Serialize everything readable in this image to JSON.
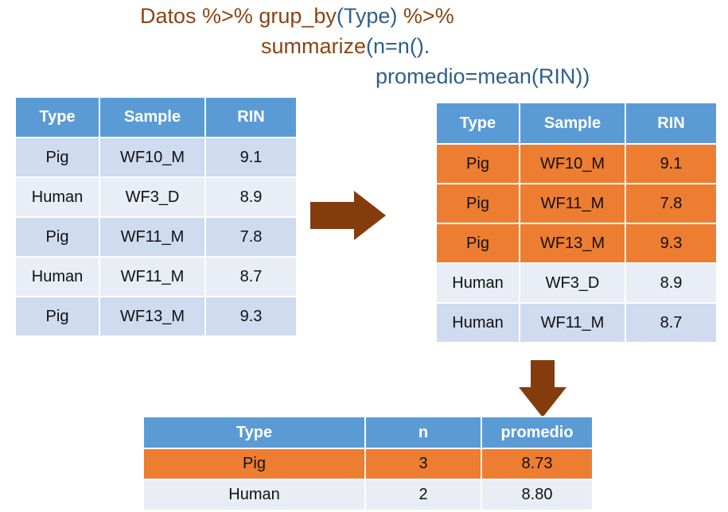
{
  "code": {
    "line1_pre": "Datos %>% grup_by",
    "line1_arg": "(Type)",
    "line1_post": " %>%",
    "line2_fn": "summarize",
    "line2_arg": "(n=n().",
    "line3": "promedio=mean(RIN))"
  },
  "colors": {
    "header": "#5B9BD5",
    "row_light": "#CFDBEE",
    "row_lighter": "#E8EDF6",
    "highlight": "#ED7D31",
    "arrow": "#843C0C",
    "code_text": "#8B4513",
    "code_accent": "#2E5F8A"
  },
  "input_table": {
    "headers": [
      "Type",
      "Sample",
      "RIN"
    ],
    "rows": [
      [
        "Pig",
        "WF10_M",
        "9.1"
      ],
      [
        "Human",
        "WF3_D",
        "8.9"
      ],
      [
        "Pig",
        "WF11_M",
        "7.8"
      ],
      [
        "Human",
        "WF11_M",
        "8.7"
      ],
      [
        "Pig",
        "WF13_M",
        "9.3"
      ]
    ]
  },
  "grouped_table": {
    "headers": [
      "Type",
      "Sample",
      "RIN"
    ],
    "rows": [
      [
        "Pig",
        "WF10_M",
        "9.1"
      ],
      [
        "Pig",
        "WF11_M",
        "7.8"
      ],
      [
        "Pig",
        "WF13_M",
        "9.3"
      ],
      [
        "Human",
        "WF3_D",
        "8.9"
      ],
      [
        "Human",
        "WF11_M",
        "8.7"
      ]
    ]
  },
  "summary_table": {
    "headers": [
      "Type",
      "n",
      "promedio"
    ],
    "rows": [
      [
        "Pig",
        "3",
        "8.73"
      ],
      [
        "Human",
        "2",
        "8.80"
      ]
    ]
  },
  "arrows": {
    "right": "arrow-right-icon",
    "down": "arrow-down-icon"
  }
}
